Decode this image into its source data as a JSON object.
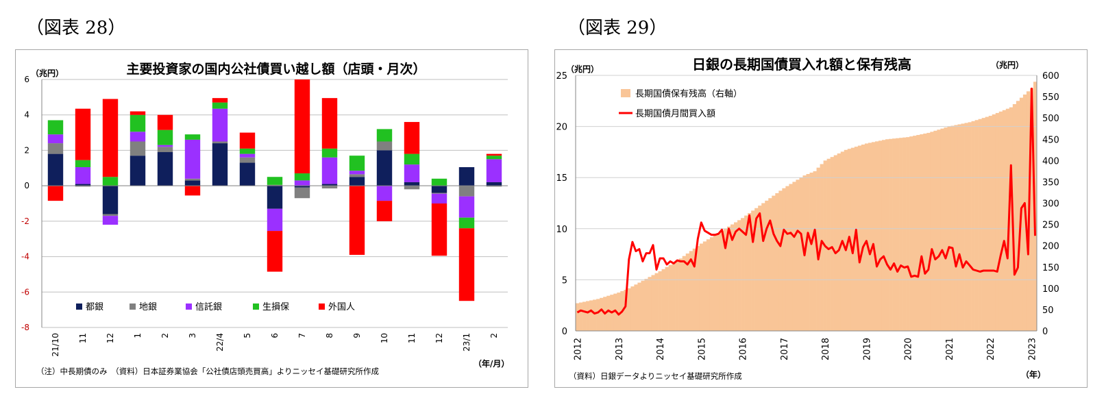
{
  "fig28": {
    "label": "（図表 28）",
    "footnote": "（注）中長期債のみ　（資料）日本証券業協会「公社債店頭売買高」よりニッセイ基礎研究所作成"
  },
  "fig29": {
    "label": "（図表 29）",
    "footnote": "（資料）日銀データよりニッセイ基礎研究所作成"
  },
  "chart_data": [
    {
      "type": "bar",
      "stacked": true,
      "title": "主要投資家の国内公社債買い越し額（店頭・月次）",
      "ylabel": "（兆円）",
      "xlabel": "（年/月）",
      "ylim": [
        -8,
        6
      ],
      "yticks": [
        6,
        4,
        2,
        0,
        -2,
        -4,
        -6,
        -8
      ],
      "grid": true,
      "legend_position": "bottom-left",
      "categories": [
        "21/10",
        "11",
        "12",
        "1",
        "2",
        "3",
        "22/4",
        "5",
        "6",
        "7",
        "8",
        "9",
        "10",
        "11",
        "12",
        "23/1",
        "2"
      ],
      "series": [
        {
          "name": "都銀",
          "color": "#0f1f5c",
          "values": [
            1.8,
            0.1,
            -1.6,
            1.7,
            1.9,
            0.3,
            2.4,
            1.3,
            -1.3,
            -0.1,
            0.1,
            0.5,
            2.0,
            0.2,
            -0.4,
            1.05,
            0.2
          ]
        },
        {
          "name": "地銀",
          "color": "#808080",
          "values": [
            0.6,
            -0.05,
            -0.1,
            0.8,
            0.3,
            0.1,
            0.1,
            0.3,
            0.05,
            -0.6,
            -0.15,
            0.15,
            0.5,
            -0.2,
            -0.05,
            -0.6,
            -0.05
          ]
        },
        {
          "name": "信託銀",
          "color": "#9b30ff",
          "values": [
            0.5,
            0.95,
            -0.5,
            0.55,
            0.1,
            2.2,
            1.85,
            0.2,
            -1.25,
            0.3,
            1.5,
            0.2,
            -0.85,
            1.0,
            -0.55,
            -1.2,
            1.3
          ]
        },
        {
          "name": "生損保",
          "color": "#21c121",
          "values": [
            0.8,
            0.4,
            0.5,
            0.95,
            0.85,
            0.3,
            0.35,
            0.3,
            0.45,
            0.4,
            0.5,
            0.85,
            0.7,
            0.6,
            0.4,
            -0.6,
            0.2
          ]
        },
        {
          "name": "外国人",
          "color": "#ff0000",
          "values": [
            -0.85,
            2.9,
            4.4,
            0.2,
            0.85,
            -0.55,
            0.25,
            0.9,
            -2.3,
            5.3,
            2.85,
            -3.9,
            -1.15,
            1.8,
            -2.95,
            -4.1,
            0.1
          ]
        }
      ]
    },
    {
      "type": "area+line",
      "title": "日銀の長期国債買入れ額と保有残高",
      "ylabel_left": "（兆円）",
      "ylabel_right": "（兆円）",
      "xlabel": "（年）",
      "ylim_left": [
        0,
        25
      ],
      "ylim_right": [
        0,
        600
      ],
      "yticks_left": [
        0,
        5,
        10,
        15,
        20,
        25
      ],
      "yticks_right": [
        0,
        50,
        100,
        150,
        200,
        250,
        300,
        350,
        400,
        450,
        500,
        550,
        600
      ],
      "xticks": [
        "2012",
        "2013",
        "2014",
        "2015",
        "2016",
        "2017",
        "2018",
        "2019",
        "2020",
        "2021",
        "2022",
        "2023"
      ],
      "grid": true,
      "legend_position": "top-left",
      "x_start": "2012-01",
      "x_end": "2023-02",
      "series": [
        {
          "name": "長期国債保有残高（右軸）",
          "type": "area",
          "axis": "right",
          "color": "#f9c597",
          "anchors": [
            [
              "2012-01",
              65
            ],
            [
              "2012-07",
              75
            ],
            [
              "2013-01",
              90
            ],
            [
              "2013-04",
              100
            ],
            [
              "2014-01",
              140
            ],
            [
              "2014-07",
              170
            ],
            [
              "2015-01",
              205
            ],
            [
              "2015-07",
              235
            ],
            [
              "2016-01",
              265
            ],
            [
              "2016-07",
              300
            ],
            [
              "2017-01",
              335
            ],
            [
              "2017-07",
              365
            ],
            [
              "2017-10",
              375
            ],
            [
              "2018-01",
              400
            ],
            [
              "2018-07",
              425
            ],
            [
              "2019-01",
              440
            ],
            [
              "2019-07",
              450
            ],
            [
              "2020-01",
              455
            ],
            [
              "2020-07",
              465
            ],
            [
              "2021-01",
              480
            ],
            [
              "2021-07",
              490
            ],
            [
              "2022-01",
              505
            ],
            [
              "2022-07",
              525
            ],
            [
              "2023-01",
              570
            ],
            [
              "2023-02",
              585
            ]
          ]
        },
        {
          "name": "長期国債月間買入額",
          "type": "line",
          "axis": "left",
          "color": "#ff0000",
          "points": [
            [
              "2012-01",
              1.8
            ],
            [
              "2012-02",
              2.0
            ],
            [
              "2012-03",
              1.9
            ],
            [
              "2012-04",
              1.8
            ],
            [
              "2012-05",
              2.0
            ],
            [
              "2012-06",
              1.7
            ],
            [
              "2012-07",
              1.8
            ],
            [
              "2012-08",
              2.1
            ],
            [
              "2012-09",
              1.7
            ],
            [
              "2012-10",
              2.0
            ],
            [
              "2012-11",
              1.8
            ],
            [
              "2012-12",
              2.0
            ],
            [
              "2013-01",
              1.6
            ],
            [
              "2013-02",
              1.9
            ],
            [
              "2013-03",
              2.4
            ],
            [
              "2013-04",
              7.0
            ],
            [
              "2013-05",
              8.7
            ],
            [
              "2013-06",
              7.8
            ],
            [
              "2013-07",
              8.0
            ],
            [
              "2013-08",
              6.8
            ],
            [
              "2013-09",
              7.6
            ],
            [
              "2013-10",
              7.6
            ],
            [
              "2013-11",
              8.4
            ],
            [
              "2013-12",
              6.0
            ],
            [
              "2014-01",
              7.1
            ],
            [
              "2014-02",
              7.1
            ],
            [
              "2014-03",
              6.5
            ],
            [
              "2014-04",
              6.8
            ],
            [
              "2014-05",
              6.6
            ],
            [
              "2014-06",
              6.9
            ],
            [
              "2014-07",
              6.8
            ],
            [
              "2014-08",
              6.8
            ],
            [
              "2014-09",
              6.5
            ],
            [
              "2014-10",
              7.0
            ],
            [
              "2014-11",
              6.3
            ],
            [
              "2014-12",
              9.0
            ],
            [
              "2015-01",
              10.6
            ],
            [
              "2015-02",
              9.8
            ],
            [
              "2015-03",
              9.6
            ],
            [
              "2015-04",
              9.4
            ],
            [
              "2015-05",
              9.4
            ],
            [
              "2015-06",
              9.5
            ],
            [
              "2015-07",
              9.9
            ],
            [
              "2015-08",
              8.1
            ],
            [
              "2015-09",
              10.0
            ],
            [
              "2015-10",
              8.9
            ],
            [
              "2015-11",
              9.7
            ],
            [
              "2015-12",
              10.0
            ],
            [
              "2016-01",
              9.7
            ],
            [
              "2016-02",
              9.4
            ],
            [
              "2016-03",
              11.3
            ],
            [
              "2016-04",
              8.7
            ],
            [
              "2016-05",
              11.0
            ],
            [
              "2016-06",
              11.5
            ],
            [
              "2016-07",
              8.8
            ],
            [
              "2016-08",
              10.0
            ],
            [
              "2016-09",
              10.8
            ],
            [
              "2016-10",
              9.5
            ],
            [
              "2016-11",
              8.8
            ],
            [
              "2016-12",
              8.3
            ],
            [
              "2017-01",
              9.9
            ],
            [
              "2017-02",
              9.5
            ],
            [
              "2017-03",
              9.6
            ],
            [
              "2017-04",
              9.2
            ],
            [
              "2017-05",
              9.8
            ],
            [
              "2017-06",
              9.5
            ],
            [
              "2017-07",
              7.4
            ],
            [
              "2017-08",
              9.6
            ],
            [
              "2017-09",
              8.5
            ],
            [
              "2017-10",
              9.9
            ],
            [
              "2017-11",
              7.0
            ],
            [
              "2017-12",
              8.8
            ],
            [
              "2018-01",
              8.3
            ],
            [
              "2018-02",
              8.0
            ],
            [
              "2018-03",
              8.2
            ],
            [
              "2018-04",
              7.6
            ],
            [
              "2018-05",
              7.9
            ],
            [
              "2018-06",
              8.8
            ],
            [
              "2018-07",
              7.9
            ],
            [
              "2018-08",
              9.2
            ],
            [
              "2018-09",
              7.6
            ],
            [
              "2018-10",
              9.9
            ],
            [
              "2018-11",
              6.7
            ],
            [
              "2018-12",
              8.2
            ],
            [
              "2019-01",
              8.8
            ],
            [
              "2019-02",
              7.5
            ],
            [
              "2019-03",
              8.5
            ],
            [
              "2019-04",
              6.3
            ],
            [
              "2019-05",
              7.0
            ],
            [
              "2019-06",
              7.3
            ],
            [
              "2019-07",
              6.5
            ],
            [
              "2019-08",
              6.0
            ],
            [
              "2019-09",
              6.6
            ],
            [
              "2019-10",
              5.8
            ],
            [
              "2019-11",
              6.4
            ],
            [
              "2019-12",
              6.2
            ],
            [
              "2020-01",
              6.3
            ],
            [
              "2020-02",
              5.3
            ],
            [
              "2020-03",
              5.4
            ],
            [
              "2020-04",
              5.3
            ],
            [
              "2020-05",
              7.3
            ],
            [
              "2020-06",
              5.6
            ],
            [
              "2020-07",
              6.0
            ],
            [
              "2020-08",
              8.0
            ],
            [
              "2020-09",
              7.0
            ],
            [
              "2020-10",
              7.3
            ],
            [
              "2020-11",
              7.9
            ],
            [
              "2020-12",
              7.1
            ],
            [
              "2021-01",
              8.2
            ],
            [
              "2021-02",
              8.1
            ],
            [
              "2021-03",
              6.3
            ],
            [
              "2021-04",
              7.5
            ],
            [
              "2021-05",
              6.2
            ],
            [
              "2021-06",
              6.8
            ],
            [
              "2021-07",
              6.4
            ],
            [
              "2021-08",
              6.0
            ],
            [
              "2021-09",
              5.9
            ],
            [
              "2021-10",
              5.8
            ],
            [
              "2021-11",
              5.9
            ],
            [
              "2021-12",
              5.9
            ],
            [
              "2022-01",
              5.9
            ],
            [
              "2022-02",
              5.9
            ],
            [
              "2022-03",
              5.8
            ],
            [
              "2022-04",
              7.4
            ],
            [
              "2022-05",
              8.8
            ],
            [
              "2022-06",
              7.1
            ],
            [
              "2022-07",
              16.2
            ],
            [
              "2022-08",
              5.5
            ],
            [
              "2022-09",
              6.2
            ],
            [
              "2022-10",
              12.0
            ],
            [
              "2022-11",
              12.5
            ],
            [
              "2022-12",
              7.5
            ],
            [
              "2023-01",
              23.7
            ],
            [
              "2023-02",
              9.3
            ]
          ]
        }
      ]
    }
  ]
}
